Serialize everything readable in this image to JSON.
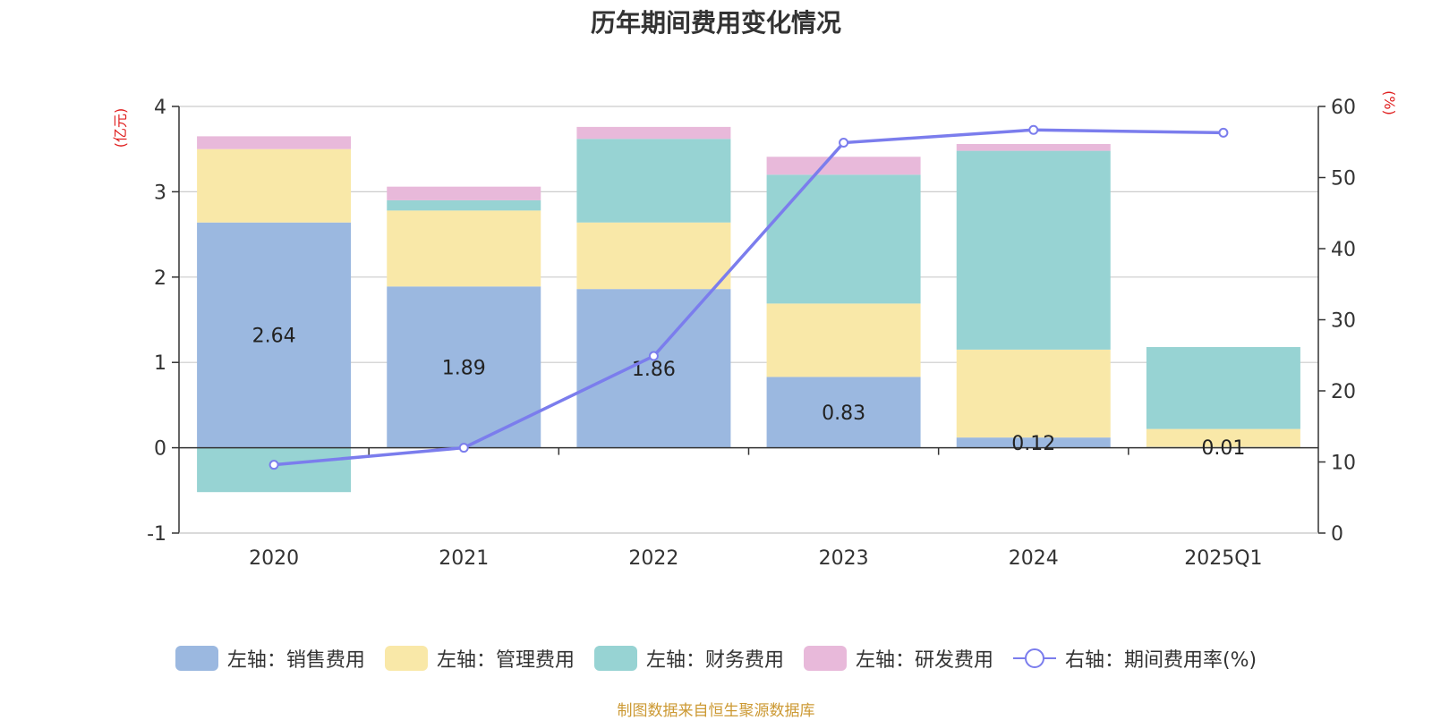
{
  "chart_data": {
    "type": "bar",
    "title": "历年期间费用变化情况",
    "categories": [
      "2020",
      "2021",
      "2022",
      "2023",
      "2024",
      "2025Q1"
    ],
    "y_left": {
      "label": "(亿元)",
      "range": [
        -1,
        4
      ],
      "ticks": [
        "-1",
        "0",
        "1",
        "2",
        "3",
        "4"
      ]
    },
    "y_right": {
      "label": "(%)",
      "range": [
        0,
        60
      ],
      "ticks": [
        "0",
        "10",
        "20",
        "30",
        "40",
        "50",
        "60"
      ]
    },
    "stacked": true,
    "series": [
      {
        "name": "左轴：销售费用",
        "axis": "left",
        "color": "#9bb8e0",
        "values": [
          2.64,
          1.89,
          1.86,
          0.83,
          0.12,
          0.01
        ],
        "labels": [
          "2.64",
          "1.89",
          "1.86",
          "0.83",
          "0.12",
          "0.01"
        ]
      },
      {
        "name": "左轴：管理费用",
        "axis": "left",
        "color": "#f9e8a8",
        "values": [
          0.86,
          0.89,
          0.78,
          0.86,
          1.03,
          0.21
        ]
      },
      {
        "name": "左轴：财务费用",
        "axis": "left",
        "color": "#97d3d3",
        "values": [
          -0.52,
          0.12,
          0.98,
          1.51,
          2.33,
          0.96
        ]
      },
      {
        "name": "左轴：研发费用",
        "axis": "left",
        "color": "#e8b9da",
        "values": [
          0.15,
          0.16,
          0.14,
          0.21,
          0.08,
          0.0
        ]
      },
      {
        "name": "右轴：期间费用率(%)",
        "axis": "right",
        "type": "line",
        "color": "#7b7ded",
        "values": [
          9.6,
          12.0,
          24.9,
          54.9,
          56.7,
          56.3
        ]
      }
    ],
    "grid": true,
    "legend_position": "bottom"
  },
  "source_note": "制图数据来自恒生聚源数据库"
}
